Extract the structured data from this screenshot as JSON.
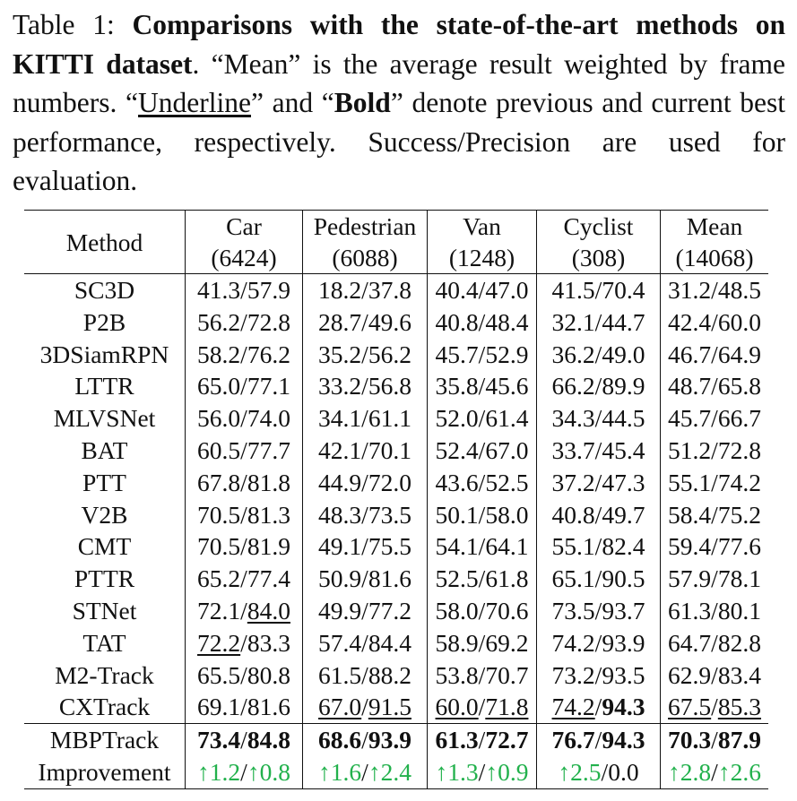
{
  "caption": {
    "label": "Table 1:",
    "bold_title": "Comparisons with the state-of-the-art methods on KITTI dataset",
    "text1": ". “Mean” is the average result weighted by frame numbers. “",
    "underline_word": "Underline",
    "text2": "” and “",
    "bold_word": "Bold",
    "text3": "” denote previous and current best performance, respectively. Success/Precision are used for evaluation."
  },
  "table": {
    "method_header": "Method",
    "columns": [
      {
        "name": "Car",
        "frames": "(6424)"
      },
      {
        "name": "Pedestrian",
        "frames": "(6088)"
      },
      {
        "name": "Van",
        "frames": "(1248)"
      },
      {
        "name": "Cyclist",
        "frames": "(308)"
      },
      {
        "name": "Mean",
        "frames": "(14068)"
      }
    ],
    "rows": [
      {
        "method": "SC3D",
        "cells": [
          [
            "41.3",
            "57.9"
          ],
          [
            "18.2",
            "37.8"
          ],
          [
            "40.4",
            "47.0"
          ],
          [
            "41.5",
            "70.4"
          ],
          [
            "31.2",
            "48.5"
          ]
        ]
      },
      {
        "method": "P2B",
        "cells": [
          [
            "56.2",
            "72.8"
          ],
          [
            "28.7",
            "49.6"
          ],
          [
            "40.8",
            "48.4"
          ],
          [
            "32.1",
            "44.7"
          ],
          [
            "42.4",
            "60.0"
          ]
        ]
      },
      {
        "method": "3DSiamRPN",
        "cells": [
          [
            "58.2",
            "76.2"
          ],
          [
            "35.2",
            "56.2"
          ],
          [
            "45.7",
            "52.9"
          ],
          [
            "36.2",
            "49.0"
          ],
          [
            "46.7",
            "64.9"
          ]
        ]
      },
      {
        "method": "LTTR",
        "cells": [
          [
            "65.0",
            "77.1"
          ],
          [
            "33.2",
            "56.8"
          ],
          [
            "35.8",
            "45.6"
          ],
          [
            "66.2",
            "89.9"
          ],
          [
            "48.7",
            "65.8"
          ]
        ]
      },
      {
        "method": "MLVSNet",
        "cells": [
          [
            "56.0",
            "74.0"
          ],
          [
            "34.1",
            "61.1"
          ],
          [
            "52.0",
            "61.4"
          ],
          [
            "34.3",
            "44.5"
          ],
          [
            "45.7",
            "66.7"
          ]
        ]
      },
      {
        "method": "BAT",
        "cells": [
          [
            "60.5",
            "77.7"
          ],
          [
            "42.1",
            "70.1"
          ],
          [
            "52.4",
            "67.0"
          ],
          [
            "33.7",
            "45.4"
          ],
          [
            "51.2",
            "72.8"
          ]
        ]
      },
      {
        "method": "PTT",
        "cells": [
          [
            "67.8",
            "81.8"
          ],
          [
            "44.9",
            "72.0"
          ],
          [
            "43.6",
            "52.5"
          ],
          [
            "37.2",
            "47.3"
          ],
          [
            "55.1",
            "74.2"
          ]
        ]
      },
      {
        "method": "V2B",
        "cells": [
          [
            "70.5",
            "81.3"
          ],
          [
            "48.3",
            "73.5"
          ],
          [
            "50.1",
            "58.0"
          ],
          [
            "40.8",
            "49.7"
          ],
          [
            "58.4",
            "75.2"
          ]
        ]
      },
      {
        "method": "CMT",
        "cells": [
          [
            "70.5",
            "81.9"
          ],
          [
            "49.1",
            "75.5"
          ],
          [
            "54.1",
            "64.1"
          ],
          [
            "55.1",
            "82.4"
          ],
          [
            "59.4",
            "77.6"
          ]
        ]
      },
      {
        "method": "PTTR",
        "cells": [
          [
            "65.2",
            "77.4"
          ],
          [
            "50.9",
            "81.6"
          ],
          [
            "52.5",
            "61.8"
          ],
          [
            "65.1",
            "90.5"
          ],
          [
            "57.9",
            "78.1"
          ]
        ]
      },
      {
        "method": "STNet",
        "cells": [
          [
            "72.1",
            "84.0"
          ],
          [
            "49.9",
            "77.2"
          ],
          [
            "58.0",
            "70.6"
          ],
          [
            "73.5",
            "93.7"
          ],
          [
            "61.3",
            "80.1"
          ]
        ]
      },
      {
        "method": "TAT",
        "cells": [
          [
            "72.2",
            "83.3"
          ],
          [
            "57.4",
            "84.4"
          ],
          [
            "58.9",
            "69.2"
          ],
          [
            "74.2",
            "93.9"
          ],
          [
            "64.7",
            "82.8"
          ]
        ]
      },
      {
        "method": "M2-Track",
        "cells": [
          [
            "65.5",
            "80.8"
          ],
          [
            "61.5",
            "88.2"
          ],
          [
            "53.8",
            "70.7"
          ],
          [
            "73.2",
            "93.5"
          ],
          [
            "62.9",
            "83.4"
          ]
        ]
      },
      {
        "method": "CXTrack",
        "cells": [
          [
            "69.1",
            "81.6"
          ],
          [
            "67.0",
            "91.5"
          ],
          [
            "60.0",
            "71.8"
          ],
          [
            "74.2",
            "94.3"
          ],
          [
            "67.5",
            "85.3"
          ]
        ]
      }
    ],
    "ours": {
      "method": "MBPTrack",
      "cells": [
        [
          "73.4",
          "84.8"
        ],
        [
          "68.6",
          "93.9"
        ],
        [
          "61.3",
          "72.7"
        ],
        [
          "76.7",
          "94.3"
        ],
        [
          "70.3",
          "87.9"
        ]
      ]
    },
    "improvement": {
      "method": "Improvement",
      "cells": [
        [
          "↑1.2",
          "↑0.8"
        ],
        [
          "↑1.6",
          "↑2.4"
        ],
        [
          "↑1.3",
          "↑0.9"
        ],
        [
          "↑2.5",
          "0.0"
        ],
        [
          "↑2.8",
          "↑2.6"
        ]
      ]
    }
  }
}
